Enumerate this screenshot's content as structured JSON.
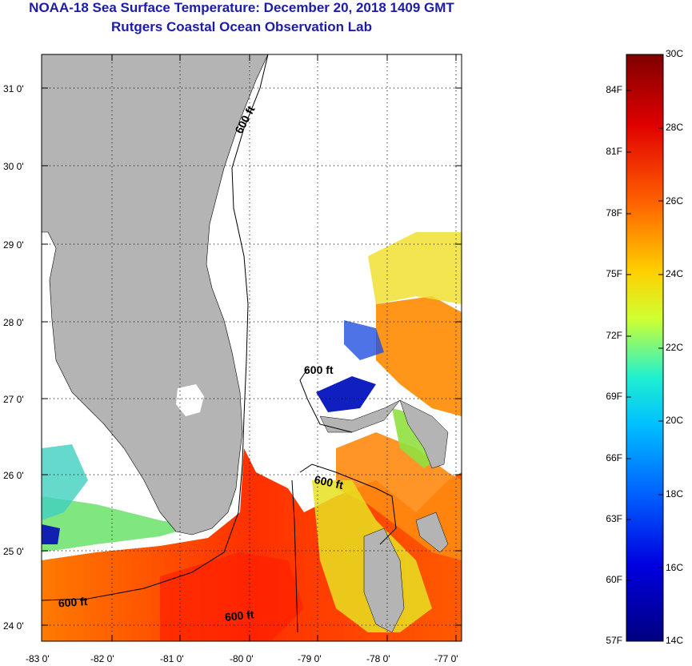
{
  "title": {
    "line1": "NOAA-18 Sea Surface Temperature:  December 20, 2018 1409 GMT",
    "line2": "Rutgers Coastal Ocean Observation Lab"
  },
  "axes": {
    "lon_labels": [
      "-83 0'",
      "-82 0'",
      "-81 0'",
      "-80 0'",
      "-79 0'",
      "-78 0'",
      "-77 0'"
    ],
    "lat_labels": [
      "31 0'",
      "30 0'",
      "29 0'",
      "28 0'",
      "27 0'",
      "26 0'",
      "25 0'",
      "24 0'"
    ],
    "lon_range": [
      -83,
      -76.9
    ],
    "lat_range": [
      23.8,
      31.4
    ]
  },
  "contours": {
    "label": "600 ft"
  },
  "colorbar": {
    "celsius": [
      "30C",
      "28C",
      "26C",
      "24C",
      "22C",
      "20C",
      "18C",
      "16C",
      "14C"
    ],
    "fahrenheit": [
      "84F",
      "81F",
      "78F",
      "75F",
      "72F",
      "69F",
      "66F",
      "63F",
      "60F",
      "57F"
    ],
    "colors": [
      "#7f0000",
      "#ff0000",
      "#ff8000",
      "#ffff00",
      "#80ff80",
      "#00ffff",
      "#0080ff",
      "#0000ff",
      "#00007f"
    ]
  },
  "colors": {
    "land": "#b4b4b4",
    "grid": "#000000",
    "title": "#1c1ca8"
  }
}
